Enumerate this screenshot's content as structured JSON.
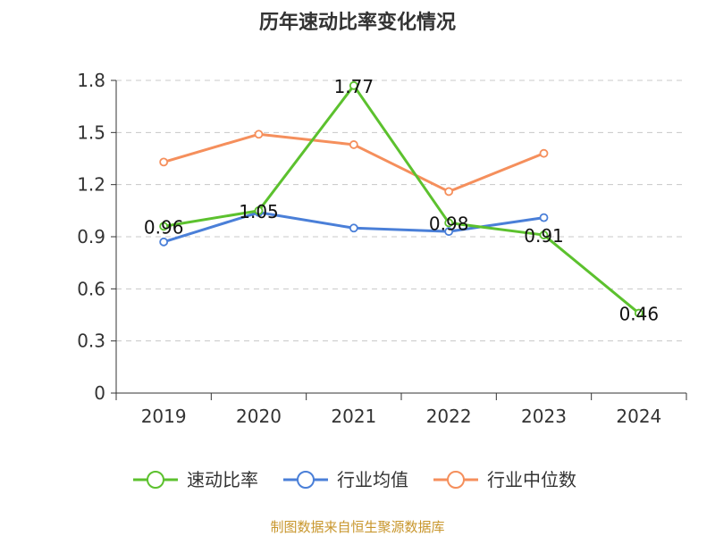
{
  "chart_data": {
    "type": "line",
    "title": "历年速动比率变化情况",
    "categories": [
      "2019",
      "2020",
      "2021",
      "2022",
      "2023",
      "2024"
    ],
    "y_ticks": [
      "0",
      "0.3",
      "0.6",
      "0.9",
      "1.2",
      "1.5",
      "1.8"
    ],
    "ylim": [
      0,
      1.8
    ],
    "grid": true,
    "legend_position": "bottom-center",
    "series": [
      {
        "name": "速动比率",
        "color": "#5cc12e",
        "values": [
          0.96,
          1.05,
          1.77,
          0.98,
          0.91,
          0.46
        ],
        "labels": [
          "0.96",
          "1.05",
          "1.77",
          "0.98",
          "0.91",
          "0.46"
        ]
      },
      {
        "name": "行业均值",
        "color": "#4a7fd8",
        "values": [
          0.87,
          1.04,
          0.95,
          0.93,
          1.01,
          null
        ]
      },
      {
        "name": "行业中位数",
        "color": "#f58f5c",
        "values": [
          1.33,
          1.49,
          1.43,
          1.16,
          1.38,
          null
        ]
      }
    ],
    "source": "制图数据来自恒生聚源数据库",
    "source_color": "#c8962c"
  }
}
